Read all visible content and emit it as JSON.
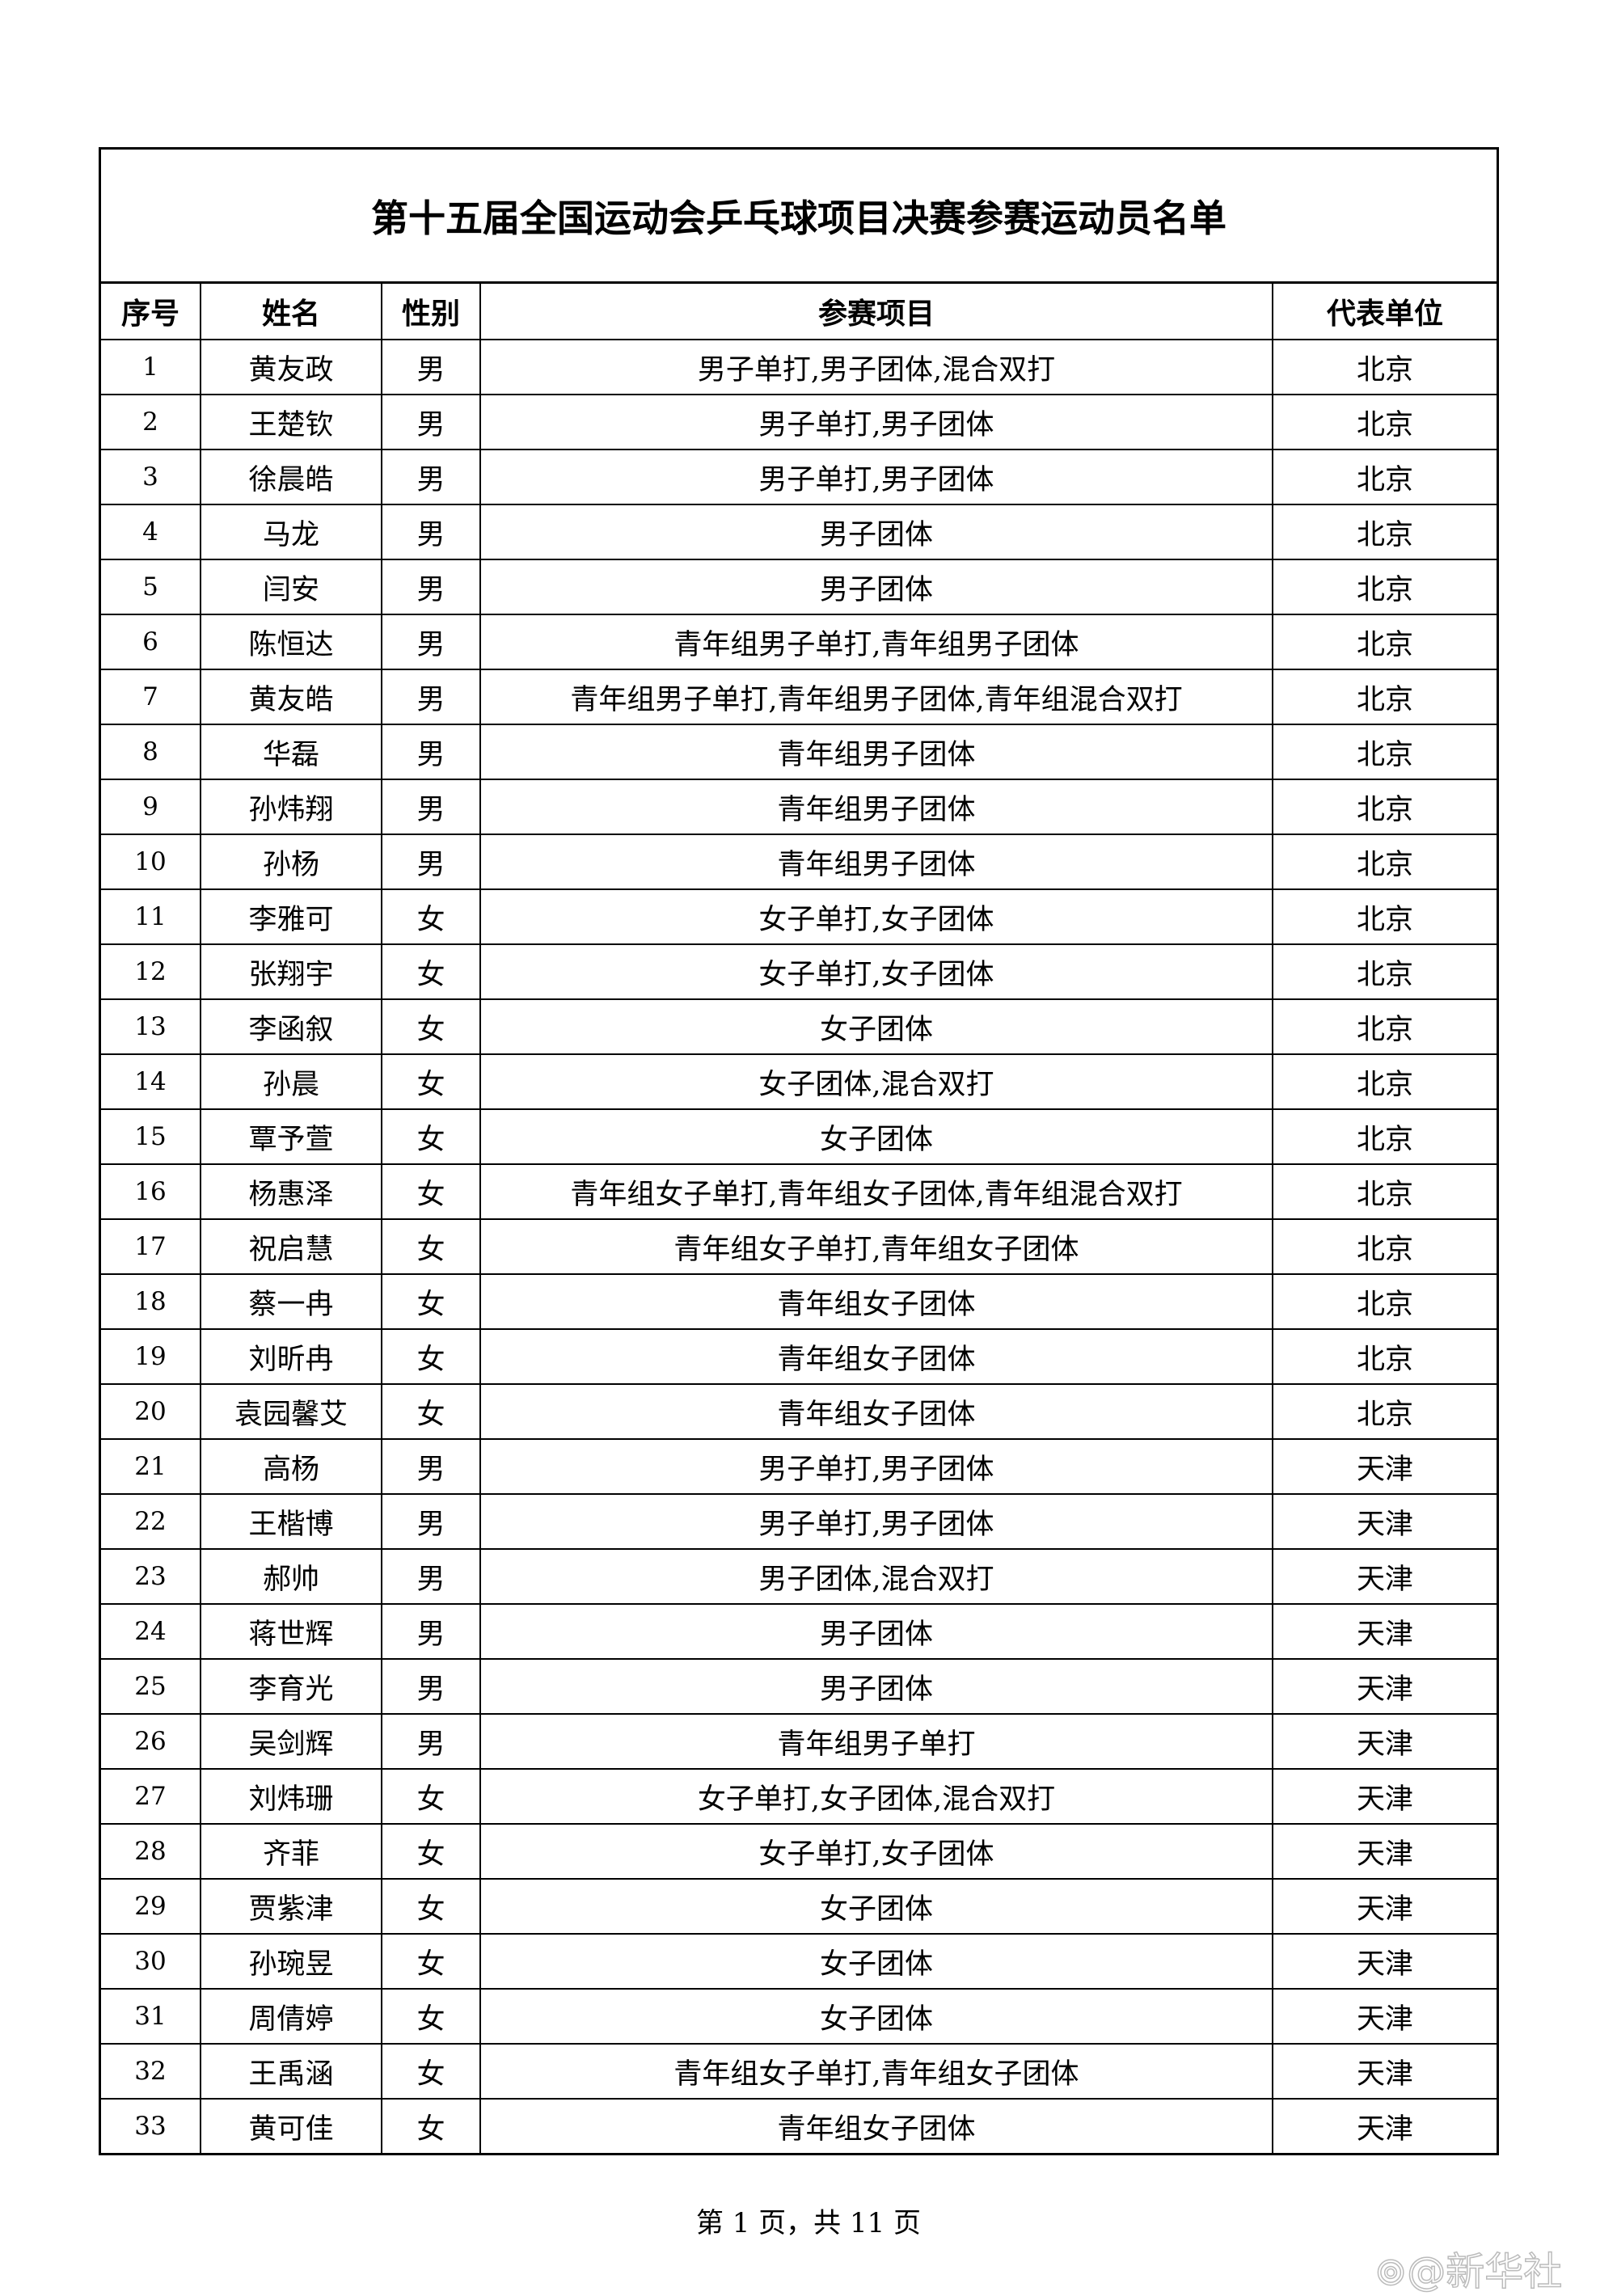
{
  "title": "第十五届全国运动会乒乓球项目决赛参赛运动员名单",
  "columns": [
    "序号",
    "姓名",
    "性别",
    "参赛项目",
    "代表单位"
  ],
  "rows": [
    [
      "1",
      "黄友政",
      "男",
      "男子单打,男子团体,混合双打",
      "北京"
    ],
    [
      "2",
      "王楚钦",
      "男",
      "男子单打,男子团体",
      "北京"
    ],
    [
      "3",
      "徐晨皓",
      "男",
      "男子单打,男子团体",
      "北京"
    ],
    [
      "4",
      "马龙",
      "男",
      "男子团体",
      "北京"
    ],
    [
      "5",
      "闫安",
      "男",
      "男子团体",
      "北京"
    ],
    [
      "6",
      "陈恒达",
      "男",
      "青年组男子单打,青年组男子团体",
      "北京"
    ],
    [
      "7",
      "黄友皓",
      "男",
      "青年组男子单打,青年组男子团体,青年组混合双打",
      "北京"
    ],
    [
      "8",
      "华磊",
      "男",
      "青年组男子团体",
      "北京"
    ],
    [
      "9",
      "孙炜翔",
      "男",
      "青年组男子团体",
      "北京"
    ],
    [
      "10",
      "孙杨",
      "男",
      "青年组男子团体",
      "北京"
    ],
    [
      "11",
      "李雅可",
      "女",
      "女子单打,女子团体",
      "北京"
    ],
    [
      "12",
      "张翔宇",
      "女",
      "女子单打,女子团体",
      "北京"
    ],
    [
      "13",
      "李函叙",
      "女",
      "女子团体",
      "北京"
    ],
    [
      "14",
      "孙晨",
      "女",
      "女子团体,混合双打",
      "北京"
    ],
    [
      "15",
      "覃予萱",
      "女",
      "女子团体",
      "北京"
    ],
    [
      "16",
      "杨惠泽",
      "女",
      "青年组女子单打,青年组女子团体,青年组混合双打",
      "北京"
    ],
    [
      "17",
      "祝启慧",
      "女",
      "青年组女子单打,青年组女子团体",
      "北京"
    ],
    [
      "18",
      "蔡一冉",
      "女",
      "青年组女子团体",
      "北京"
    ],
    [
      "19",
      "刘昕冉",
      "女",
      "青年组女子团体",
      "北京"
    ],
    [
      "20",
      "袁园馨艾",
      "女",
      "青年组女子团体",
      "北京"
    ],
    [
      "21",
      "高杨",
      "男",
      "男子单打,男子团体",
      "天津"
    ],
    [
      "22",
      "王楷博",
      "男",
      "男子单打,男子团体",
      "天津"
    ],
    [
      "23",
      "郝帅",
      "男",
      "男子团体,混合双打",
      "天津"
    ],
    [
      "24",
      "蒋世辉",
      "男",
      "男子团体",
      "天津"
    ],
    [
      "25",
      "李育光",
      "男",
      "男子团体",
      "天津"
    ],
    [
      "26",
      "吴剑辉",
      "男",
      "青年组男子单打",
      "天津"
    ],
    [
      "27",
      "刘炜珊",
      "女",
      "女子单打,女子团体,混合双打",
      "天津"
    ],
    [
      "28",
      "齐菲",
      "女",
      "女子单打,女子团体",
      "天津"
    ],
    [
      "29",
      "贾紫津",
      "女",
      "女子团体",
      "天津"
    ],
    [
      "30",
      "孙琬昱",
      "女",
      "女子团体",
      "天津"
    ],
    [
      "31",
      "周倩婷",
      "女",
      "女子团体",
      "天津"
    ],
    [
      "32",
      "王禹涵",
      "女",
      "青年组女子单打,青年组女子团体",
      "天津"
    ],
    [
      "33",
      "黄可佳",
      "女",
      "青年组女子团体",
      "天津"
    ]
  ],
  "footer": "第 1 页，共 11 页",
  "watermark": "@新华社"
}
